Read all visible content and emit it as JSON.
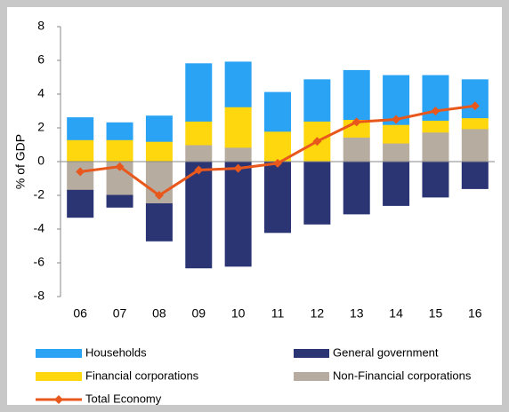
{
  "chart_data": {
    "type": "bar",
    "y_label": "% of GDP",
    "categories": [
      "06",
      "07",
      "08",
      "09",
      "10",
      "11",
      "12",
      "13",
      "14",
      "15",
      "16"
    ],
    "series": [
      {
        "name": "Households",
        "color": "#2aa3f5",
        "values": [
          1.3,
          1.0,
          1.5,
          3.4,
          2.65,
          2.3,
          2.45,
          2.9,
          2.9,
          2.65,
          2.25
        ]
      },
      {
        "name": "General government",
        "color": "#2b3574",
        "values": [
          -1.6,
          -0.7,
          -2.2,
          -6.3,
          -6.2,
          -4.2,
          -3.7,
          -3.1,
          -2.6,
          -2.1,
          -1.6
        ]
      },
      {
        "name": "Financial corporations",
        "color": "#ffd70f",
        "values": [
          1.3,
          1.3,
          1.2,
          1.4,
          2.4,
          1.8,
          2.4,
          1.05,
          1.1,
          0.7,
          0.65
        ]
      },
      {
        "name": "Non-Financial corporations",
        "color": "#b7aca0",
        "values": [
          -1.7,
          -2.0,
          -2.5,
          1.0,
          0.85,
          0,
          0,
          1.45,
          1.1,
          1.75,
          1.95
        ]
      },
      {
        "name": "Total Economy",
        "type": "line",
        "color": "#e8581c",
        "values": [
          -0.6,
          -0.3,
          -2.0,
          -0.5,
          -0.4,
          -0.1,
          1.2,
          2.35,
          2.5,
          3.0,
          3.3
        ]
      }
    ],
    "ylim": [
      -8,
      8
    ],
    "yticks": [
      -8,
      -6,
      -4,
      -2,
      0,
      2,
      4,
      6,
      8
    ],
    "grid": false
  }
}
